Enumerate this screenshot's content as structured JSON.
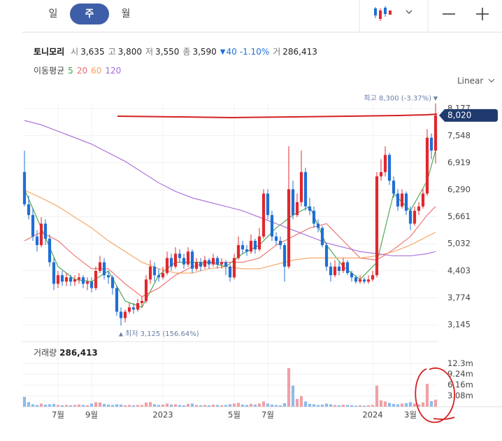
{
  "tabs": [
    "일",
    "주",
    "월"
  ],
  "selected_tab": 1,
  "header": {
    "name": "토니모리",
    "fields": [
      [
        "시",
        "3,635"
      ],
      [
        "고",
        "3,800"
      ],
      [
        "저",
        "3,550"
      ],
      [
        "종",
        "3,590"
      ]
    ],
    "change_arrow": "▼",
    "change": "40",
    "change_pct": "-1.10%",
    "volume_label": "거",
    "volume": "286,413",
    "ma_title": "이동평균"
  },
  "scale_label": "Linear",
  "chart_data": {
    "type": "candlestick",
    "up_color": "#e0282e",
    "down_color": "#1f6fd6",
    "vol_up_color": "#f0a0a6",
    "vol_down_color": "#8cbcec",
    "ylim": [
      2852,
      8294
    ],
    "yticks": [
      {
        "value": 3145,
        "label": "3,145"
      },
      {
        "value": 3774,
        "label": "3,774"
      },
      {
        "value": 4403,
        "label": "4,403"
      },
      {
        "value": 5032,
        "label": "5,032"
      },
      {
        "value": 5661,
        "label": "5,661"
      },
      {
        "value": 6290,
        "label": "6,290"
      },
      {
        "value": 6919,
        "label": "6,919"
      },
      {
        "value": 7548,
        "label": "7,548"
      },
      {
        "value": 8177,
        "label": "8,177"
      }
    ],
    "xlim": [
      -0.5,
      98.5
    ],
    "xticks": [
      {
        "value": 8,
        "label": "7월"
      },
      {
        "value": 16,
        "label": "9월"
      },
      {
        "value": 33,
        "label": "2023"
      },
      {
        "value": 50,
        "label": "5월"
      },
      {
        "value": 58,
        "label": "7월"
      },
      {
        "value": 83,
        "label": "2024"
      },
      {
        "value": 92,
        "label": "3월"
      }
    ],
    "last_price": 8020,
    "last_price_label": "8,020",
    "annotations": [
      {
        "text": "최고 8,300 (-3.37%)",
        "index": 98,
        "value": 8300,
        "marker": "▼"
      },
      {
        "text": "최저 3,125 (156.64%)",
        "index": 23,
        "value": 3125,
        "marker": "▲"
      }
    ],
    "ohlc": [
      [
        6700,
        7200,
        5900,
        5950
      ],
      [
        5950,
        6150,
        5600,
        5700
      ],
      [
        5700,
        5850,
        5100,
        5200
      ],
      [
        5200,
        5350,
        4850,
        5000
      ],
      [
        5000,
        5650,
        4950,
        5500
      ],
      [
        5500,
        5600,
        5000,
        5150
      ],
      [
        5150,
        5250,
        4500,
        4600
      ],
      [
        4600,
        4700,
        3950,
        4100
      ],
      [
        4100,
        4400,
        4000,
        4300
      ],
      [
        4300,
        4400,
        4050,
        4150
      ],
      [
        4150,
        4350,
        4050,
        4250
      ],
      [
        4250,
        4300,
        4050,
        4150
      ],
      [
        4150,
        4300,
        4050,
        4200
      ],
      [
        4200,
        4350,
        4100,
        4250
      ],
      [
        4250,
        4300,
        4000,
        4100
      ],
      [
        4100,
        4250,
        3950,
        4150
      ],
      [
        4150,
        4250,
        3900,
        4000
      ],
      [
        4000,
        4500,
        3950,
        4400
      ],
      [
        4400,
        4750,
        4350,
        4600
      ],
      [
        4600,
        4700,
        4200,
        4300
      ],
      [
        4300,
        4400,
        4100,
        4250
      ],
      [
        4250,
        4300,
        3850,
        4000
      ],
      [
        4000,
        4050,
        3350,
        3450
      ],
      [
        3450,
        3550,
        3125,
        3300
      ],
      [
        3300,
        3500,
        3200,
        3450
      ],
      [
        3450,
        3650,
        3400,
        3550
      ],
      [
        3550,
        3650,
        3400,
        3500
      ],
      [
        3500,
        3750,
        3450,
        3650
      ],
      [
        3650,
        3800,
        3550,
        3700
      ],
      [
        3700,
        4300,
        3650,
        4200
      ],
      [
        4200,
        4650,
        4100,
        4500
      ],
      [
        4500,
        4600,
        4150,
        4300
      ],
      [
        4300,
        4450,
        4150,
        4250
      ],
      [
        4250,
        4500,
        4200,
        4350
      ],
      [
        4350,
        4850,
        4300,
        4700
      ],
      [
        4700,
        4800,
        4400,
        4500
      ],
      [
        4500,
        4950,
        4450,
        4800
      ],
      [
        4800,
        4900,
        4600,
        4700
      ],
      [
        4700,
        4800,
        4450,
        4550
      ],
      [
        4550,
        4950,
        4500,
        4850
      ],
      [
        4850,
        4900,
        4350,
        4450
      ],
      [
        4450,
        4700,
        4400,
        4600
      ],
      [
        4600,
        4700,
        4400,
        4500
      ],
      [
        4500,
        4750,
        4450,
        4650
      ],
      [
        4650,
        4700,
        4450,
        4550
      ],
      [
        4550,
        4800,
        4500,
        4700
      ],
      [
        4700,
        4750,
        4450,
        4550
      ],
      [
        4550,
        4700,
        4450,
        4600
      ],
      [
        4600,
        4650,
        4300,
        4500
      ],
      [
        4500,
        4550,
        4150,
        4250
      ],
      [
        4250,
        4800,
        4200,
        4700
      ],
      [
        4700,
        5200,
        4650,
        5000
      ],
      [
        5000,
        5100,
        4800,
        4900
      ],
      [
        4900,
        5000,
        4750,
        4850
      ],
      [
        4850,
        5250,
        4800,
        5100
      ],
      [
        5100,
        5150,
        4800,
        4900
      ],
      [
        4900,
        5400,
        4850,
        5200
      ],
      [
        5200,
        6300,
        5150,
        6200
      ],
      [
        6200,
        6300,
        5600,
        5700
      ],
      [
        5700,
        5800,
        5100,
        5200
      ],
      [
        5200,
        5300,
        5000,
        5100
      ],
      [
        5100,
        5200,
        4900,
        5000
      ],
      [
        5000,
        5050,
        4150,
        4500
      ],
      [
        4500,
        7300,
        4450,
        6300
      ],
      [
        6300,
        6500,
        5600,
        5700
      ],
      [
        5700,
        6200,
        5650,
        6000
      ],
      [
        6000,
        7200,
        5900,
        6700
      ],
      [
        6700,
        6800,
        5800,
        5900
      ],
      [
        5900,
        6100,
        5700,
        5800
      ],
      [
        5800,
        5900,
        5400,
        5500
      ],
      [
        5500,
        5600,
        5300,
        5400
      ],
      [
        5400,
        5450,
        4950,
        5000
      ],
      [
        5000,
        5050,
        4400,
        4500
      ],
      [
        4500,
        4600,
        4150,
        4300
      ],
      [
        4300,
        4650,
        4250,
        4500
      ],
      [
        4500,
        4600,
        4300,
        4400
      ],
      [
        4400,
        4700,
        4350,
        4600
      ],
      [
        4600,
        4650,
        4300,
        4350
      ],
      [
        4350,
        4400,
        4150,
        4250
      ],
      [
        4250,
        4300,
        4100,
        4150
      ],
      [
        4150,
        4300,
        4100,
        4200
      ],
      [
        4200,
        4250,
        4100,
        4150
      ],
      [
        4150,
        4300,
        4100,
        4200
      ],
      [
        4200,
        4400,
        4150,
        4300
      ],
      [
        4300,
        6700,
        4250,
        6600
      ],
      [
        6600,
        7000,
        6500,
        6700
      ],
      [
        6700,
        7300,
        6600,
        7100
      ],
      [
        7100,
        7150,
        6400,
        6500
      ],
      [
        6500,
        6600,
        6100,
        6200
      ],
      [
        6200,
        6300,
        5800,
        5900
      ],
      [
        5900,
        6300,
        5850,
        6200
      ],
      [
        6200,
        6250,
        5700,
        5800
      ],
      [
        5800,
        5900,
        5350,
        5500
      ],
      [
        5500,
        5900,
        5450,
        5800
      ],
      [
        5800,
        6000,
        5700,
        5900
      ],
      [
        5900,
        6300,
        5850,
        6200
      ],
      [
        6200,
        7700,
        6150,
        7500
      ],
      [
        7500,
        7600,
        7000,
        7200
      ],
      [
        7200,
        8300,
        6900,
        8020
      ]
    ],
    "volume_title": "거래량",
    "volume_value": "286,413",
    "vlim": [
      0,
      17740000
    ],
    "vticks": [
      {
        "value": 3080000,
        "label": "3.08m"
      },
      {
        "value": 6160000,
        "label": "6.16m"
      },
      {
        "value": 9240000,
        "label": "9.24m"
      },
      {
        "value": 12300000,
        "label": "12.3m"
      }
    ],
    "volume": [
      2800000,
      1300000,
      700000,
      500000,
      900000,
      600000,
      700000,
      800000,
      500000,
      400000,
      500000,
      400000,
      500000,
      600000,
      500000,
      400000,
      900000,
      1300000,
      1200000,
      800000,
      600000,
      500000,
      700000,
      600000,
      400000,
      500000,
      400000,
      500000,
      500000,
      1200000,
      1300000,
      700000,
      500000,
      600000,
      900000,
      600000,
      700000,
      500000,
      400000,
      800000,
      900000,
      500000,
      400000,
      500000,
      400000,
      600000,
      500000,
      400000,
      500000,
      700000,
      900000,
      1100000,
      600000,
      500000,
      800000,
      600000,
      900000,
      1500000,
      900000,
      600000,
      500000,
      400000,
      1000000,
      11000000,
      6000000,
      2200000,
      3000000,
      1500000,
      800000,
      700000,
      500000,
      600000,
      900000,
      700000,
      500000,
      400000,
      600000,
      500000,
      400000,
      300000,
      400000,
      300000,
      400000,
      500000,
      6000000,
      1800000,
      1500000,
      1100000,
      800000,
      700000,
      900000,
      1000000,
      1300000,
      900000,
      700000,
      1200000,
      6500000,
      1600000,
      2000000
    ],
    "ma_index": [
      0,
      4,
      8,
      12,
      16,
      20,
      24,
      28,
      32,
      36,
      40,
      44,
      48,
      52,
      56,
      60,
      64,
      68,
      72,
      76,
      80,
      84,
      88,
      92,
      96,
      98
    ],
    "series": [
      {
        "name": "5",
        "color": "#43a047",
        "values": [
          6300,
          5400,
          4500,
          4200,
          4150,
          4400,
          3700,
          3550,
          4300,
          4600,
          4600,
          4600,
          4500,
          4800,
          5000,
          5400,
          5700,
          5900,
          5000,
          4500,
          4200,
          4600,
          6200,
          5800,
          6500,
          7200
        ]
      },
      {
        "name": "20",
        "color": "#ef6b6b",
        "values": [
          5100,
          5300,
          5100,
          4750,
          4450,
          4450,
          4100,
          3800,
          4000,
          4300,
          4500,
          4600,
          4600,
          4600,
          4700,
          5000,
          5200,
          5400,
          5500,
          5100,
          4700,
          4650,
          4900,
          5200,
          5700,
          5900
        ]
      },
      {
        "name": "60",
        "color": "#f4a460",
        "values": [
          6280,
          6100,
          5900,
          5650,
          5400,
          5100,
          4850,
          4600,
          4450,
          4350,
          4350,
          4450,
          4500,
          4450,
          4450,
          4550,
          4650,
          4700,
          4700,
          4700,
          4700,
          4750,
          4850,
          5000,
          5200,
          5300
        ]
      },
      {
        "name": "120",
        "color": "#a66ad8",
        "values": [
          7900,
          7800,
          7650,
          7500,
          7350,
          7150,
          6950,
          6700,
          6450,
          6250,
          6100,
          6000,
          5900,
          5800,
          5650,
          5500,
          5350,
          5200,
          5050,
          4950,
          4850,
          4800,
          4750,
          4750,
          4800,
          4850
        ]
      }
    ]
  }
}
